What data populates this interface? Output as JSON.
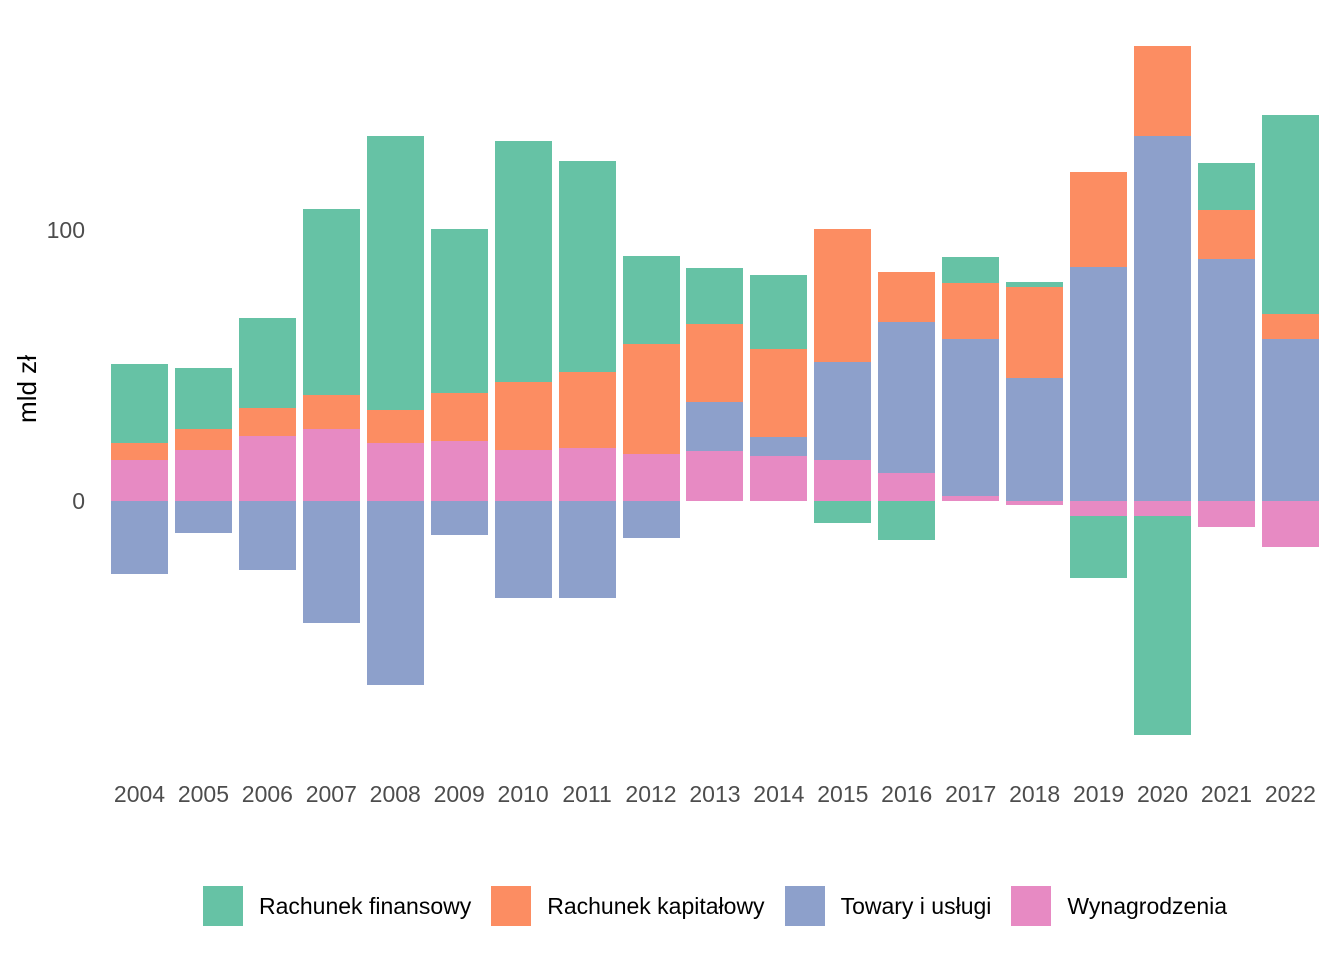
{
  "chart_data": {
    "type": "bar",
    "stacked": true,
    "title": "",
    "ylabel": "mld zł",
    "xlabel": "",
    "unit": "mld zł",
    "grid": false,
    "legend_position": "bottom",
    "ylim": [
      -90,
      170
    ],
    "yticks": [
      {
        "label": "100",
        "value": 100
      },
      {
        "label": "0",
        "value": 0
      }
    ],
    "categories": [
      "2004",
      "2005",
      "2006",
      "2007",
      "2008",
      "2009",
      "2010",
      "2011",
      "2012",
      "2013",
      "2014",
      "2015",
      "2016",
      "2017",
      "2018",
      "2019",
      "2020",
      "2021",
      "2022"
    ],
    "series": [
      {
        "name": "Rachunek finansowy",
        "color": "#66C2A5",
        "values": [
          29,
          22.5,
          33,
          69,
          101.5,
          60.5,
          89,
          78,
          32.5,
          20.5,
          27.5,
          -8,
          -14.5,
          9.5,
          2,
          -23,
          -81,
          17.5,
          73.5
        ]
      },
      {
        "name": "Rachunek kapitałowy",
        "color": "#FC8D62",
        "values": [
          6.5,
          7.5,
          10.5,
          12.5,
          12,
          18,
          25,
          28,
          40.5,
          29,
          32.5,
          49,
          18.5,
          20.5,
          33.5,
          35,
          33,
          18,
          9
        ]
      },
      {
        "name": "Towary i usługi",
        "color": "#8DA0CB",
        "values": [
          -27,
          -12,
          -25.5,
          -45,
          -68,
          -12.5,
          -36,
          -36,
          -13.5,
          18,
          7,
          36.5,
          55.5,
          58,
          45.5,
          86.5,
          135,
          89.5,
          60
        ]
      },
      {
        "name": "Wynagrodzenia",
        "color": "#E78AC3",
        "values": [
          15,
          19,
          24,
          26.5,
          21.5,
          22,
          19,
          19.5,
          17.5,
          18.5,
          16.5,
          15,
          10.5,
          2,
          -1.5,
          -5.5,
          -5.5,
          -9.5,
          -17
        ]
      }
    ],
    "stack_order_bottom_to_top": [
      "Wynagrodzenia",
      "Towary i usługi",
      "Rachunek kapitałowy",
      "Rachunek finansowy"
    ]
  }
}
